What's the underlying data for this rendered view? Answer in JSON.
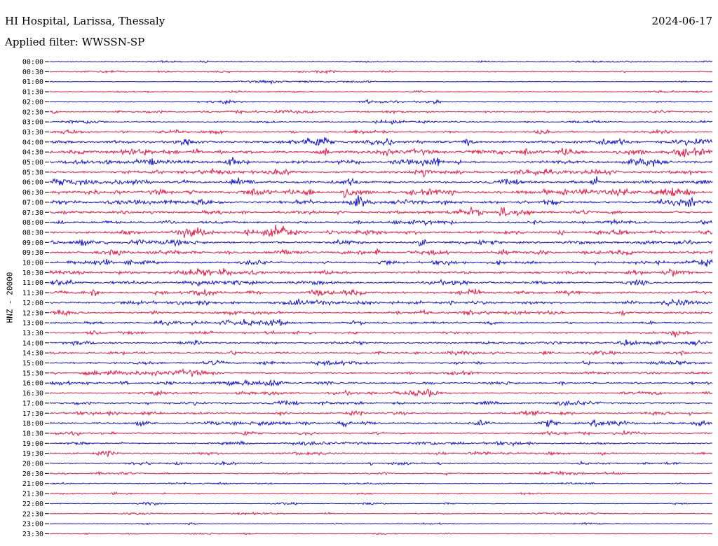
{
  "header": {
    "station": "HI Hospital, Larissa, Thessaly",
    "date": "2024-06-17",
    "filter": "Applied filter: WWSSN-SP"
  },
  "chart_data": {
    "type": "line",
    "subtype": "helicorder",
    "ylabel": "HNZ - 20000",
    "xlabel": "",
    "row_labels": [
      "00:00",
      "00:30",
      "01:00",
      "01:30",
      "02:00",
      "02:30",
      "03:00",
      "03:30",
      "04:00",
      "04:30",
      "05:00",
      "05:30",
      "06:00",
      "06:30",
      "07:00",
      "07:30",
      "08:00",
      "08:30",
      "09:00",
      "09:30",
      "10:00",
      "10:30",
      "11:00",
      "11:30",
      "12:00",
      "12:30",
      "13:00",
      "13:30",
      "14:00",
      "14:30",
      "15:00",
      "15:30",
      "16:00",
      "16:30",
      "17:00",
      "17:30",
      "18:00",
      "18:30",
      "19:00",
      "19:30",
      "20:00",
      "20:30",
      "21:00",
      "21:30",
      "22:00",
      "22:30",
      "23:00",
      "23:30"
    ],
    "series_colors": [
      "#1414d8",
      "#ee1944"
    ],
    "row_activity": [
      0.12,
      0.18,
      0.1,
      0.12,
      0.22,
      0.3,
      0.32,
      0.38,
      0.6,
      0.68,
      0.62,
      0.55,
      0.58,
      0.72,
      0.62,
      0.52,
      0.5,
      0.62,
      0.58,
      0.55,
      0.55,
      0.58,
      0.55,
      0.52,
      0.52,
      0.5,
      0.45,
      0.4,
      0.42,
      0.4,
      0.45,
      0.42,
      0.45,
      0.4,
      0.42,
      0.4,
      0.55,
      0.38,
      0.35,
      0.32,
      0.3,
      0.25,
      0.18,
      0.15,
      0.12,
      0.15,
      0.1,
      0.08
    ],
    "grid": false
  }
}
